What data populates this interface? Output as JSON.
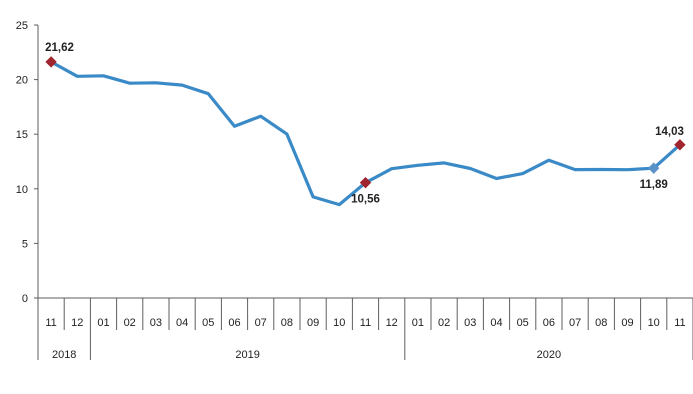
{
  "colors": {
    "line": "#3a8ac7",
    "marker_highlight": "#a0252e",
    "marker_alt": "#5b93c9",
    "axis": "#5e5e5e"
  },
  "chart_data": {
    "type": "line",
    "title": "",
    "xlabel": "",
    "ylabel": "",
    "ylim": [
      0,
      25
    ],
    "yticks": [
      "0",
      "5",
      "10",
      "15",
      "20",
      "25"
    ],
    "grid": false,
    "categories": [
      "11",
      "12",
      "01",
      "02",
      "03",
      "04",
      "05",
      "06",
      "07",
      "08",
      "09",
      "10",
      "11",
      "12",
      "01",
      "02",
      "03",
      "04",
      "05",
      "06",
      "07",
      "08",
      "09",
      "10",
      "11"
    ],
    "years": [
      {
        "label": "2018",
        "start": 0,
        "end": 2
      },
      {
        "label": "2019",
        "start": 2,
        "end": 14
      },
      {
        "label": "2020",
        "start": 14,
        "end": 25
      }
    ],
    "series": [
      {
        "values": [
          21.62,
          20.3,
          20.35,
          19.67,
          19.71,
          19.5,
          18.71,
          15.72,
          16.65,
          15.01,
          9.26,
          8.55,
          10.56,
          11.84,
          12.15,
          12.37,
          11.86,
          10.94,
          11.39,
          12.62,
          11.76,
          11.77,
          11.75,
          11.89,
          14.03
        ]
      }
    ],
    "data_labels": [
      {
        "index": 0,
        "text": "21,62",
        "marker": "highlight"
      },
      {
        "index": 12,
        "text": "10,56",
        "marker": "highlight"
      },
      {
        "index": 23,
        "text": "11,89",
        "marker": "alt"
      },
      {
        "index": 24,
        "text": "14,03",
        "marker": "highlight"
      }
    ]
  }
}
